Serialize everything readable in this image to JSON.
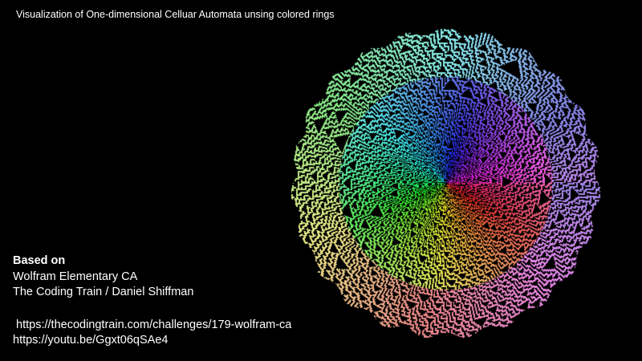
{
  "title": "Visualization of One-dimensional Celluar Automata unsing colored rings",
  "credits": {
    "heading": "Based on",
    "line1": "Wolfram Elementary CA",
    "line2": "The Coding Train / Daniel Shiffman",
    "link1": " https://thecodingtrain.com/challenges/179-wolfram-ca",
    "link2": "https://youtu.be/Ggxt06qSAe4"
  },
  "colors": {
    "background": "#000000",
    "text": "#ffffff"
  }
}
